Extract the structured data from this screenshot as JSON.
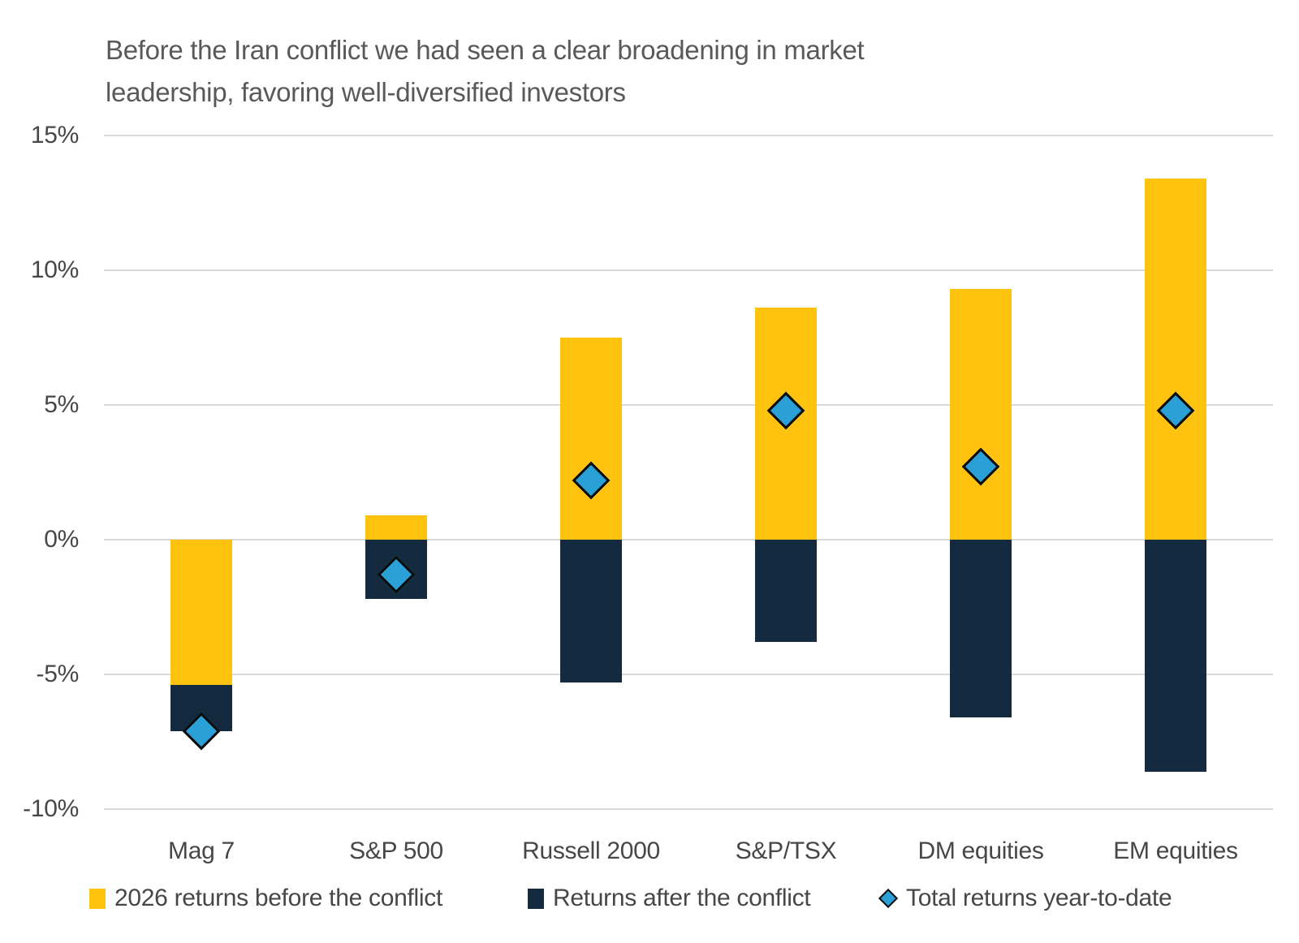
{
  "title": {
    "line1": "Before the Iran conflict we had seen a clear broadening in market",
    "line2": "leadership, favoring well-diversified investors"
  },
  "chart_data": {
    "type": "bar",
    "stacked": true,
    "grid": true,
    "legend_position": "bottom",
    "title": "Before the Iran conflict we had seen a clear broadening in market leadership, favoring well-diversified investors",
    "categories": [
      "Mag 7",
      "S&P 500",
      "Russell 2000",
      "S&P/TSX",
      "DM equities",
      "EM equities"
    ],
    "series": [
      {
        "name": "2026 returns before the conflict",
        "color": "#FFC20E",
        "values": [
          -5.4,
          0.9,
          7.5,
          8.6,
          9.3,
          13.4
        ]
      },
      {
        "name": "Returns after the conflict",
        "color": "#132A3F",
        "values": [
          -1.7,
          -2.2,
          -5.3,
          -3.8,
          -6.6,
          -8.6
        ]
      }
    ],
    "markers": {
      "name": "Total returns year-to-date",
      "shape": "diamond",
      "fill": "#2BA0D6",
      "stroke": "#0A0A0A",
      "values": [
        -7.1,
        -1.3,
        2.2,
        4.8,
        2.7,
        4.8
      ]
    },
    "y_axis": {
      "min": -10,
      "max": 15,
      "unit": "%",
      "ticks": [
        {
          "value": 15,
          "label": "15%"
        },
        {
          "value": 10,
          "label": "10%"
        },
        {
          "value": 5,
          "label": "5%"
        },
        {
          "value": 0,
          "label": "0%"
        },
        {
          "value": -5,
          "label": "-5%"
        },
        {
          "value": -10,
          "label": "-10%"
        }
      ]
    },
    "colors": {
      "gridline": "#D9D9D9",
      "title_text": "#595959",
      "axis_text": "#474747"
    }
  }
}
